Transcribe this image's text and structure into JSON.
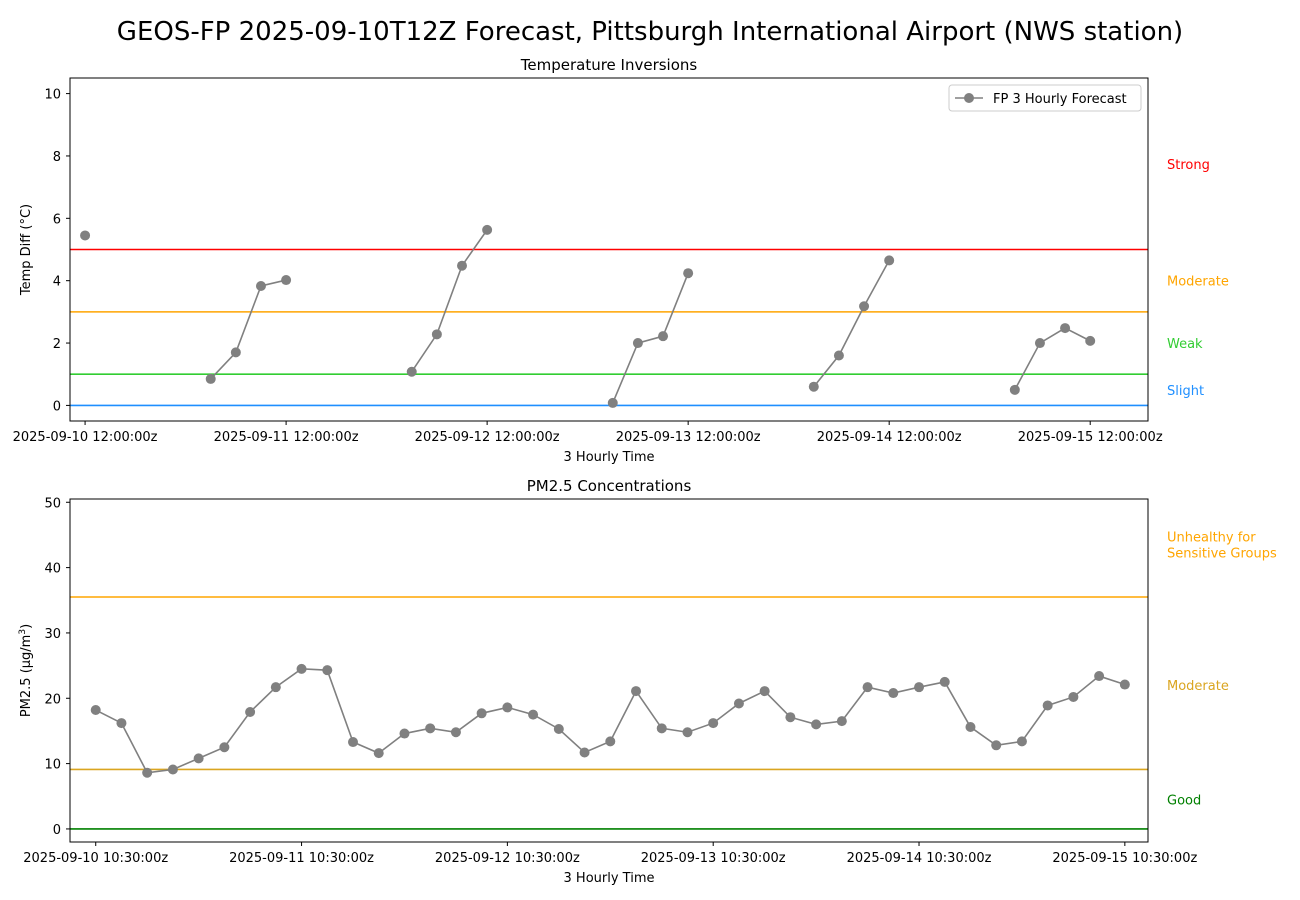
{
  "figure": {
    "title": "GEOS-FP 2025-09-10T12Z Forecast, Pittsburgh International Airport (NWS station)"
  },
  "chart_data": [
    {
      "type": "line",
      "title": "Temperature Inversions",
      "xlabel": "3 Hourly Time",
      "ylabel": "Temp Diff (°C)",
      "ylim": [
        -0.5,
        10.5
      ],
      "yticks": [
        0,
        2,
        4,
        6,
        8,
        10
      ],
      "xlim": [
        -0.6,
        42.3
      ],
      "xticks": [
        {
          "x": 0,
          "label": "2025-09-10 12:00:00z"
        },
        {
          "x": 8,
          "label": "2025-09-11 12:00:00z"
        },
        {
          "x": 16,
          "label": "2025-09-12 12:00:00z"
        },
        {
          "x": 24,
          "label": "2025-09-13 12:00:00z"
        },
        {
          "x": 32,
          "label": "2025-09-14 12:00:00z"
        },
        {
          "x": 40,
          "label": "2025-09-15 12:00:00z"
        }
      ],
      "legend": {
        "label": "FP 3 Hourly Forecast",
        "position": "upper right"
      },
      "series": [
        {
          "name": "FP 3 Hourly Forecast",
          "color": "#808080",
          "x": [
            0,
            1,
            2,
            3,
            4,
            5,
            6,
            7,
            8,
            9,
            10,
            11,
            12,
            13,
            14,
            15,
            16,
            17,
            18,
            19,
            20,
            21,
            22,
            23,
            24,
            25,
            26,
            27,
            28,
            29,
            30,
            31,
            32,
            33,
            34,
            35,
            36,
            37,
            38,
            39,
            40
          ],
          "y": [
            5.45,
            null,
            null,
            null,
            null,
            0.85,
            1.7,
            3.83,
            4.02,
            null,
            null,
            null,
            null,
            1.08,
            2.28,
            4.48,
            5.63,
            null,
            null,
            null,
            null,
            0.08,
            2.0,
            2.22,
            4.24,
            null,
            null,
            null,
            null,
            0.6,
            1.6,
            3.18,
            4.65,
            null,
            null,
            null,
            null,
            0.5,
            2.0,
            2.48,
            2.07
          ]
        }
      ],
      "thresholds": [
        {
          "value": 0,
          "label": "Slight",
          "color": "#1f8fff",
          "label_y": 0.5
        },
        {
          "value": 1,
          "label": "Weak",
          "color": "#32cd32",
          "label_y": 2.0
        },
        {
          "value": 3,
          "label": "Moderate",
          "color": "#ffa500",
          "label_y": 4.0
        },
        {
          "value": 5,
          "label": "Strong",
          "color": "#ff0000",
          "label_y": 7.75
        }
      ]
    },
    {
      "type": "line",
      "title": "PM2.5 Concentrations",
      "xlabel": "3 Hourly Time",
      "ylabel": "PM2.5 (μg/m",
      "ylabel_sup": "3",
      "ylabel_end": ")",
      "ylim": [
        -2,
        50.5
      ],
      "yticks": [
        0,
        10,
        20,
        30,
        40,
        50
      ],
      "xlim": [
        -1,
        40.9
      ],
      "xticks": [
        {
          "x": 0,
          "label": "2025-09-10 10:30:00z"
        },
        {
          "x": 8,
          "label": "2025-09-11 10:30:00z"
        },
        {
          "x": 16,
          "label": "2025-09-12 10:30:00z"
        },
        {
          "x": 24,
          "label": "2025-09-13 10:30:00z"
        },
        {
          "x": 32,
          "label": "2025-09-14 10:30:00z"
        },
        {
          "x": 40,
          "label": "2025-09-15 10:30:00z"
        }
      ],
      "series": [
        {
          "color": "#808080",
          "x": [
            0,
            1,
            2,
            3,
            4,
            5,
            6,
            7,
            8,
            9,
            10,
            11,
            12,
            13,
            14,
            15,
            16,
            17,
            18,
            19,
            20,
            21,
            22,
            23,
            24,
            25,
            26,
            27,
            28,
            29,
            30,
            31,
            32,
            33,
            34,
            35,
            36,
            37,
            38,
            39,
            40
          ],
          "y": [
            18.2,
            16.2,
            8.6,
            9.1,
            10.8,
            12.5,
            17.9,
            21.7,
            24.5,
            24.3,
            13.3,
            11.6,
            14.6,
            15.4,
            14.8,
            17.7,
            18.6,
            17.5,
            15.3,
            11.7,
            13.4,
            21.1,
            15.4,
            14.8,
            16.2,
            19.2,
            21.1,
            17.1,
            16.0,
            16.5,
            21.7,
            20.8,
            21.7,
            22.5,
            15.6,
            12.8,
            13.4,
            18.9,
            20.2,
            23.4,
            22.1
          ]
        }
      ],
      "thresholds": [
        {
          "value": 0,
          "label": "Good",
          "color": "#008000",
          "label_y": 4.5
        },
        {
          "value": 9.1,
          "label": "Moderate",
          "color": "#daa520",
          "label_y": 22.0
        },
        {
          "value": 35.5,
          "label": "Unhealthy for\nSensitive Groups",
          "color": "#ffa500",
          "label_y": 43.5
        }
      ]
    }
  ]
}
